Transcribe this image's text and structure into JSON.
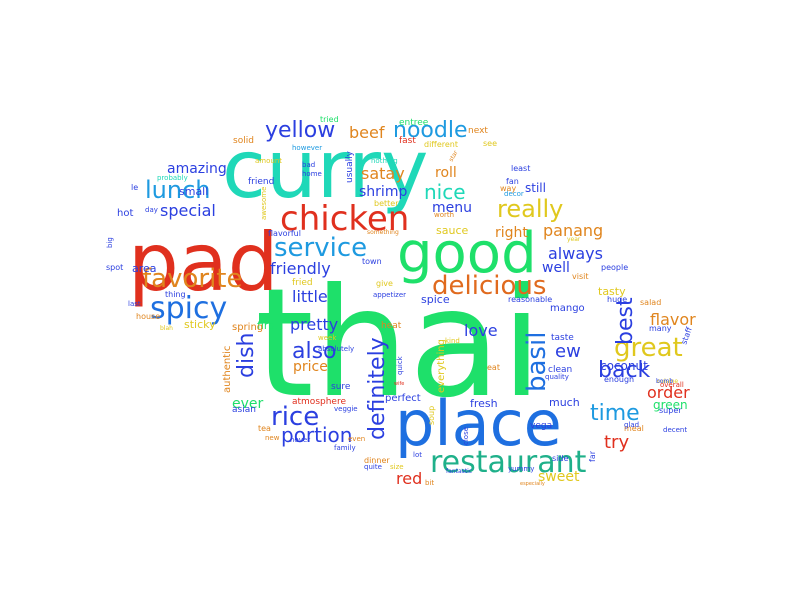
{
  "words": [
    {
      "text": "thai",
      "color": "#1ee06a"
    },
    {
      "text": "curry",
      "color": "#1fd8b8"
    },
    {
      "text": "pad",
      "color": "#e0301e"
    },
    {
      "text": "place",
      "color": "#1e6fe0"
    },
    {
      "text": "good",
      "color": "#1ee06a"
    },
    {
      "text": "chicken",
      "color": "#e0301e"
    },
    {
      "text": "restaurant",
      "color": "#1fb08a"
    },
    {
      "text": "delicious",
      "color": "#e06a1e"
    },
    {
      "text": "lunch",
      "color": "#1e9ae0"
    },
    {
      "text": "spicy",
      "color": "#1e6fe0"
    },
    {
      "text": "favorite",
      "color": "#e0851e"
    },
    {
      "text": "service",
      "color": "#1e9ae0"
    },
    {
      "text": "great",
      "color": "#e0c81e"
    },
    {
      "text": "really",
      "color": "#e0c81e"
    },
    {
      "text": "yellow",
      "color": "#2b3fe0"
    },
    {
      "text": "noodle",
      "color": "#1e9ae0"
    },
    {
      "text": "basil",
      "color": "#1e6fe0"
    },
    {
      "text": "back",
      "color": "#2b3fe0"
    },
    {
      "text": "time",
      "color": "#1e9ae0"
    },
    {
      "text": "rice",
      "color": "#2b3fe0"
    },
    {
      "text": "also",
      "color": "#2b3fe0"
    },
    {
      "text": "best",
      "color": "#2b3fe0"
    },
    {
      "text": "definitely",
      "color": "#2b3fe0"
    },
    {
      "text": "dish",
      "color": "#2b3fe0"
    },
    {
      "text": "portion",
      "color": "#2b3fe0"
    },
    {
      "text": "nice",
      "color": "#1fd8b8"
    },
    {
      "text": "special",
      "color": "#2b3fe0"
    },
    {
      "text": "pretty",
      "color": "#2b3fe0"
    },
    {
      "text": "order",
      "color": "#e0301e"
    },
    {
      "text": "friendly",
      "color": "#2b3fe0"
    },
    {
      "text": "beef",
      "color": "#e0851e"
    },
    {
      "text": "satay",
      "color": "#e0851e"
    },
    {
      "text": "menu",
      "color": "#2b3fe0"
    },
    {
      "text": "little",
      "color": "#2b3fe0"
    },
    {
      "text": "love",
      "color": "#2b3fe0"
    },
    {
      "text": "always",
      "color": "#2b3fe0"
    },
    {
      "text": "panang",
      "color": "#e0851e"
    },
    {
      "text": "flavor",
      "color": "#e0851e"
    },
    {
      "text": "try",
      "color": "#e0301e"
    },
    {
      "text": "sweet",
      "color": "#e0c81e"
    },
    {
      "text": "red",
      "color": "#e0301e"
    },
    {
      "text": "price",
      "color": "#e0851e"
    },
    {
      "text": "amazing",
      "color": "#2b3fe0"
    },
    {
      "text": "right",
      "color": "#e0851e"
    },
    {
      "text": "ew",
      "color": "#2b3fe0"
    },
    {
      "text": "well",
      "color": "#2b3fe0"
    },
    {
      "text": "ever",
      "color": "#1ee06a"
    },
    {
      "text": "roll",
      "color": "#e0851e"
    },
    {
      "text": "shrimp",
      "color": "#2b3fe0"
    },
    {
      "text": "small",
      "color": "#2b3fe0"
    },
    {
      "text": "still",
      "color": "#2b3fe0"
    },
    {
      "text": "first",
      "color": "#1ee06a"
    },
    {
      "text": "coconut",
      "color": "#2b3fe0"
    },
    {
      "text": "green",
      "color": "#1ee06a"
    },
    {
      "text": "fresh",
      "color": "#2b3fe0"
    },
    {
      "text": "mango",
      "color": "#2b3fe0"
    },
    {
      "text": "sauce",
      "color": "#e0c81e"
    },
    {
      "text": "tasty",
      "color": "#e0c81e"
    },
    {
      "text": "spice",
      "color": "#2b3fe0"
    },
    {
      "text": "hot",
      "color": "#2b3fe0"
    },
    {
      "text": "area",
      "color": "#2b3fe0"
    },
    {
      "text": "sticky",
      "color": "#e0c81e"
    },
    {
      "text": "perfect",
      "color": "#2b3fe0"
    },
    {
      "text": "much",
      "color": "#2b3fe0"
    },
    {
      "text": "soup",
      "color": "#e0c81e"
    },
    {
      "text": "everything",
      "color": "#e0c81e"
    },
    {
      "text": "fried",
      "color": "#e0c81e"
    },
    {
      "text": "usually",
      "color": "#2b3fe0"
    },
    {
      "text": "vega",
      "color": "#2b3fe0"
    },
    {
      "text": "spring",
      "color": "#e0851e"
    },
    {
      "text": "authentic",
      "color": "#e0851e"
    },
    {
      "text": "asian",
      "color": "#2b3fe0"
    },
    {
      "text": "atmosphere",
      "color": "#e0301e"
    },
    {
      "text": "entree",
      "color": "#1ee06a"
    },
    {
      "text": "next",
      "color": "#e0851e"
    },
    {
      "text": "solid",
      "color": "#e0851e"
    },
    {
      "text": "fast",
      "color": "#e0301e"
    },
    {
      "text": "different",
      "color": "#e0c81e"
    },
    {
      "text": "see",
      "color": "#e0c81e"
    },
    {
      "text": "tried",
      "color": "#1ee06a"
    },
    {
      "text": "however",
      "color": "#1e9ae0"
    },
    {
      "text": "amount",
      "color": "#e0c81e"
    },
    {
      "text": "bad",
      "color": "#2b3fe0"
    },
    {
      "text": "home",
      "color": "#2b3fe0"
    },
    {
      "text": "nothing",
      "color": "#1fd8b8"
    },
    {
      "text": "least",
      "color": "#2b3fe0"
    },
    {
      "text": "fan",
      "color": "#2b3fe0"
    },
    {
      "text": "decor",
      "color": "#1e9ae0"
    },
    {
      "text": "probably",
      "color": "#1fd8b8"
    },
    {
      "text": "friend",
      "color": "#2b3fe0"
    },
    {
      "text": "le",
      "color": "#2b3fe0"
    },
    {
      "text": "awesome",
      "color": "#e0c81e"
    },
    {
      "text": "day",
      "color": "#2b3fe0"
    },
    {
      "text": "better",
      "color": "#e0c81e"
    },
    {
      "text": "worth",
      "color": "#e0851e"
    },
    {
      "text": "way",
      "color": "#e0851e"
    },
    {
      "text": "star",
      "color": "#e0851e"
    },
    {
      "text": "something",
      "color": "#e0851e"
    },
    {
      "text": "year",
      "color": "#e0c81e"
    },
    {
      "text": "flavorful",
      "color": "#2b3fe0"
    },
    {
      "text": "big",
      "color": "#2b3fe0"
    },
    {
      "text": "spot",
      "color": "#2b3fe0"
    },
    {
      "text": "town",
      "color": "#2b3fe0"
    },
    {
      "text": "give",
      "color": "#e0c81e"
    },
    {
      "text": "visit",
      "color": "#e0851e"
    },
    {
      "text": "people",
      "color": "#2b3fe0"
    },
    {
      "text": "thing",
      "color": "#2b3fe0"
    },
    {
      "text": "last",
      "color": "#2b3fe0"
    },
    {
      "text": "house",
      "color": "#e0851e"
    },
    {
      "text": "appetizer",
      "color": "#2b3fe0"
    },
    {
      "text": "reasonable",
      "color": "#2b3fe0"
    },
    {
      "text": "huge",
      "color": "#2b3fe0"
    },
    {
      "text": "salad",
      "color": "#e0851e"
    },
    {
      "text": "blah",
      "color": "#e0c81e"
    },
    {
      "text": "heat",
      "color": "#e0851e"
    },
    {
      "text": "kind",
      "color": "#e0c81e"
    },
    {
      "text": "taste",
      "color": "#2b3fe0"
    },
    {
      "text": "staff",
      "color": "#2b3fe0"
    },
    {
      "text": "many",
      "color": "#2b3fe0"
    },
    {
      "text": "week",
      "color": "#e0c81e"
    },
    {
      "text": "absolutely",
      "color": "#2b3fe0"
    },
    {
      "text": "quick",
      "color": "#2b3fe0"
    },
    {
      "text": "eat",
      "color": "#e0851e"
    },
    {
      "text": "clean",
      "color": "#2b3fe0"
    },
    {
      "text": "quality",
      "color": "#2b3fe0"
    },
    {
      "text": "enough",
      "color": "#2b3fe0"
    },
    {
      "text": "overall",
      "color": "#e0301e"
    },
    {
      "text": "cuisine",
      "color": "#e0c81e"
    },
    {
      "text": "sure",
      "color": "#2b3fe0"
    },
    {
      "text": "wife",
      "color": "#e0301e"
    },
    {
      "text": "veggie",
      "color": "#2b3fe0"
    },
    {
      "text": "tea",
      "color": "#e0851e"
    },
    {
      "text": "new",
      "color": "#e0851e"
    },
    {
      "text": "never",
      "color": "#2b3fe0"
    },
    {
      "text": "even",
      "color": "#e0851e"
    },
    {
      "text": "family",
      "color": "#2b3fe0"
    },
    {
      "text": "close",
      "color": "#2b3fe0"
    },
    {
      "text": "meal",
      "color": "#e0851e"
    },
    {
      "text": "decent",
      "color": "#2b3fe0"
    },
    {
      "text": "super",
      "color": "#2b3fe0"
    },
    {
      "text": "glad",
      "color": "#2b3fe0"
    },
    {
      "text": "dinner",
      "color": "#e0851e"
    },
    {
      "text": "lot",
      "color": "#2b3fe0"
    },
    {
      "text": "side",
      "color": "#2b3fe0"
    },
    {
      "text": "far",
      "color": "#2b3fe0"
    },
    {
      "text": "quite",
      "color": "#2b3fe0"
    },
    {
      "text": "size",
      "color": "#e0c81e"
    },
    {
      "text": "fantastic",
      "color": "#2b3fe0"
    },
    {
      "text": "bit",
      "color": "#e0851e"
    },
    {
      "text": "yummy",
      "color": "#2b3fe0"
    },
    {
      "text": "especially",
      "color": "#e0851e"
    },
    {
      "text": "bomb",
      "color": "#2b3fe0"
    }
  ]
}
